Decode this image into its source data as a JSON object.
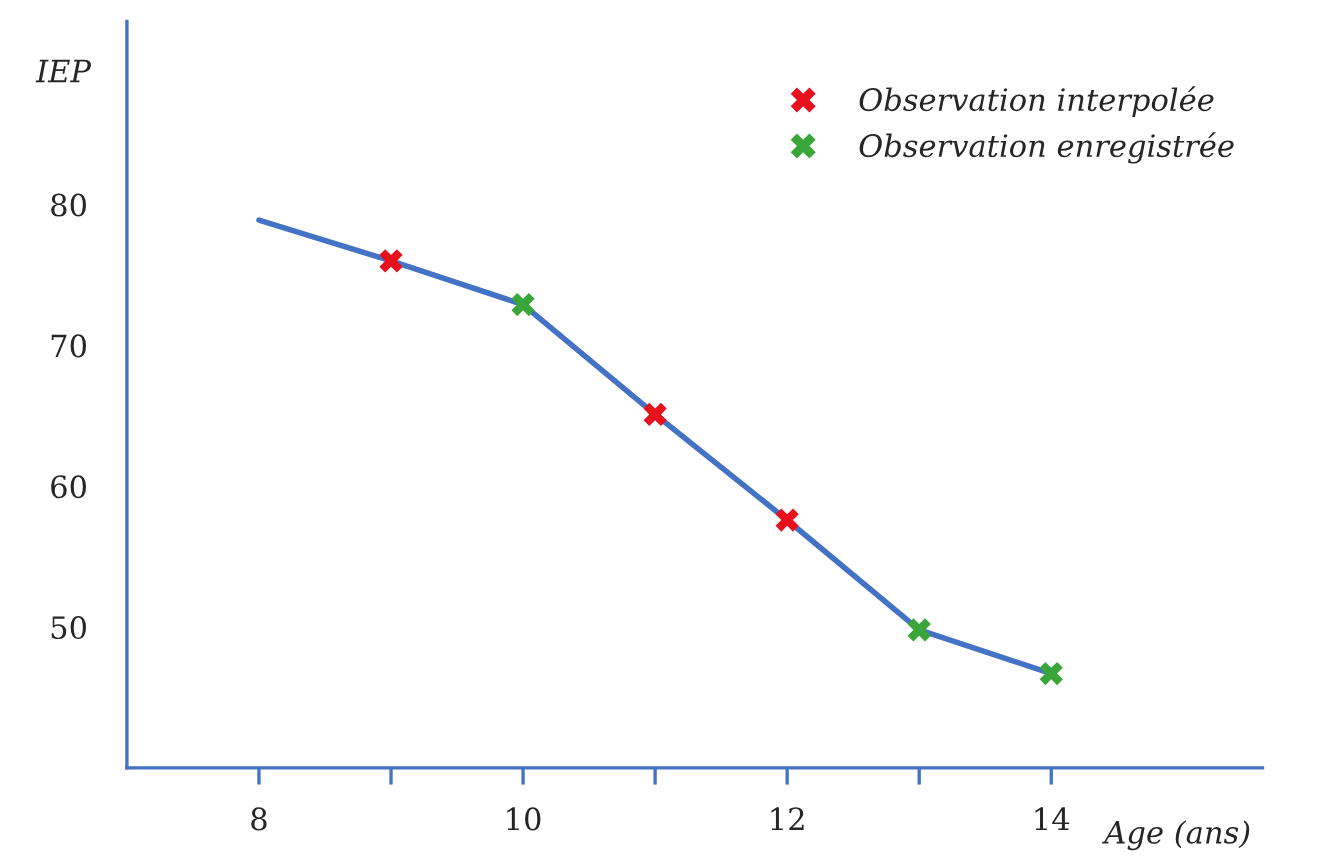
{
  "chart_data": {
    "type": "line",
    "xlabel": "Age (ans)",
    "ylabel": "IEP",
    "series": [
      {
        "color": "#4472c4",
        "x": [
          8,
          9,
          10,
          11,
          12,
          13,
          14
        ],
        "values": [
          78.9,
          76.0,
          72.9,
          65.1,
          57.6,
          49.8,
          46.7
        ],
        "marker": "none"
      },
      {
        "type": "scatter",
        "name": "Observation interpolée",
        "color": "#e8101c",
        "x": [
          9,
          11,
          12
        ],
        "values": [
          76.0,
          65.1,
          57.6
        ],
        "marker": "cross"
      },
      {
        "type": "scatter",
        "name": "Observation enregistrée",
        "color": "#3aa63a",
        "x": [
          10,
          13,
          14
        ],
        "values": [
          72.9,
          49.8,
          46.7
        ],
        "marker": "cross"
      }
    ],
    "xlim": [
      7,
      15.6
    ],
    "ylim": [
      40,
      93
    ],
    "xticks": [
      8,
      {
        "value": 9,
        "label": null
      },
      10,
      {
        "value": 11,
        "label": null
      },
      12,
      {
        "value": 13,
        "label": null
      },
      14
    ],
    "yticks": [
      50,
      60,
      70,
      80
    ],
    "grid": false,
    "legend": "top right"
  }
}
